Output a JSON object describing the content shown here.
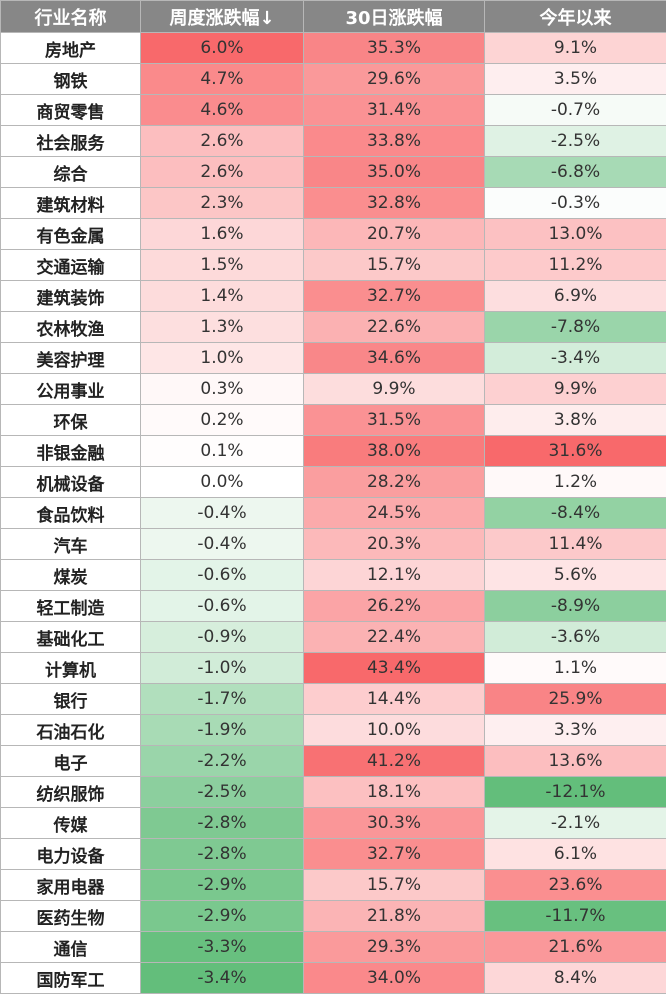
{
  "headers": [
    "行业名称",
    "周度涨跌幅↓",
    "30日涨跌幅",
    "今年以来"
  ],
  "colors": {
    "header_bg": "#878787",
    "positive_max": "#f8696b",
    "negative_max": "#63be7b",
    "neutral": "#ffffff"
  },
  "rows": [
    {
      "name": "房地产",
      "week": "6.0%",
      "d30": "35.3%",
      "ytd": "9.1%"
    },
    {
      "name": "钢铁",
      "week": "4.7%",
      "d30": "29.6%",
      "ytd": "3.5%"
    },
    {
      "name": "商贸零售",
      "week": "4.6%",
      "d30": "31.4%",
      "ytd": "-0.7%"
    },
    {
      "name": "社会服务",
      "week": "2.6%",
      "d30": "33.8%",
      "ytd": "-2.5%"
    },
    {
      "name": "综合",
      "week": "2.6%",
      "d30": "35.0%",
      "ytd": "-6.8%"
    },
    {
      "name": "建筑材料",
      "week": "2.3%",
      "d30": "32.8%",
      "ytd": "-0.3%"
    },
    {
      "name": "有色金属",
      "week": "1.6%",
      "d30": "20.7%",
      "ytd": "13.0%"
    },
    {
      "name": "交通运输",
      "week": "1.5%",
      "d30": "15.7%",
      "ytd": "11.2%"
    },
    {
      "name": "建筑装饰",
      "week": "1.4%",
      "d30": "32.7%",
      "ytd": "6.9%"
    },
    {
      "name": "农林牧渔",
      "week": "1.3%",
      "d30": "22.6%",
      "ytd": "-7.8%"
    },
    {
      "name": "美容护理",
      "week": "1.0%",
      "d30": "34.6%",
      "ytd": "-3.4%"
    },
    {
      "name": "公用事业",
      "week": "0.3%",
      "d30": "9.9%",
      "ytd": "9.9%"
    },
    {
      "name": "环保",
      "week": "0.2%",
      "d30": "31.5%",
      "ytd": "3.8%"
    },
    {
      "name": "非银金融",
      "week": "0.1%",
      "d30": "38.0%",
      "ytd": "31.6%"
    },
    {
      "name": "机械设备",
      "week": "0.0%",
      "d30": "28.2%",
      "ytd": "1.2%"
    },
    {
      "name": "食品饮料",
      "week": "-0.4%",
      "d30": "24.5%",
      "ytd": "-8.4%"
    },
    {
      "name": "汽车",
      "week": "-0.4%",
      "d30": "20.3%",
      "ytd": "11.4%"
    },
    {
      "name": "煤炭",
      "week": "-0.6%",
      "d30": "12.1%",
      "ytd": "5.6%"
    },
    {
      "name": "轻工制造",
      "week": "-0.6%",
      "d30": "26.2%",
      "ytd": "-8.9%"
    },
    {
      "name": "基础化工",
      "week": "-0.9%",
      "d30": "22.4%",
      "ytd": "-3.6%"
    },
    {
      "name": "计算机",
      "week": "-1.0%",
      "d30": "43.4%",
      "ytd": "1.1%"
    },
    {
      "name": "银行",
      "week": "-1.7%",
      "d30": "14.4%",
      "ytd": "25.9%"
    },
    {
      "name": "石油石化",
      "week": "-1.9%",
      "d30": "10.0%",
      "ytd": "3.3%"
    },
    {
      "name": "电子",
      "week": "-2.2%",
      "d30": "41.2%",
      "ytd": "13.6%"
    },
    {
      "name": "纺织服饰",
      "week": "-2.5%",
      "d30": "18.1%",
      "ytd": "-12.1%"
    },
    {
      "name": "传媒",
      "week": "-2.8%",
      "d30": "30.3%",
      "ytd": "-2.1%"
    },
    {
      "name": "电力设备",
      "week": "-2.8%",
      "d30": "32.7%",
      "ytd": "6.1%"
    },
    {
      "name": "家用电器",
      "week": "-2.9%",
      "d30": "15.7%",
      "ytd": "23.6%"
    },
    {
      "name": "医药生物",
      "week": "-2.9%",
      "d30": "21.8%",
      "ytd": "-11.7%"
    },
    {
      "name": "通信",
      "week": "-3.3%",
      "d30": "29.3%",
      "ytd": "21.6%"
    },
    {
      "name": "国防军工",
      "week": "-3.4%",
      "d30": "34.0%",
      "ytd": "8.4%"
    }
  ]
}
